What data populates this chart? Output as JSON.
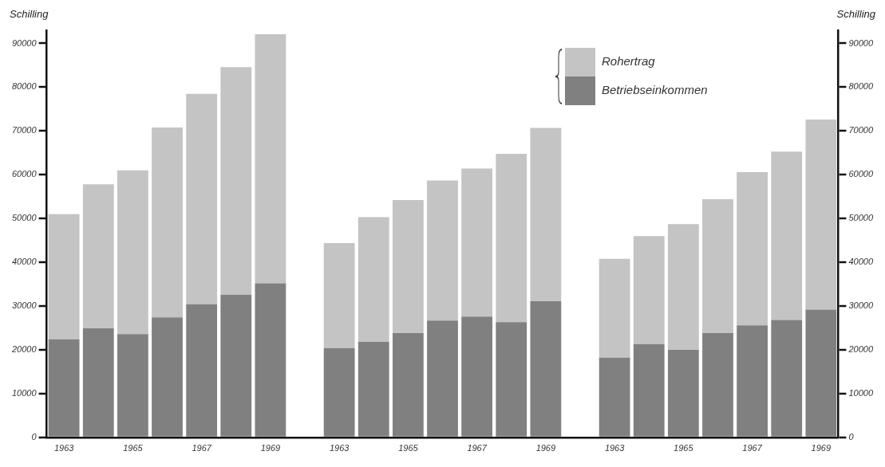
{
  "chart_data": {
    "type": "bar",
    "stacked": true,
    "ylabel": "Schilling",
    "y2label": "Schilling",
    "categories": [
      "1963",
      null,
      "1965",
      null,
      "1967",
      null,
      "1969",
      null,
      "1963",
      null,
      "1965",
      null,
      "1967",
      null,
      "1969",
      null,
      "1963",
      null,
      "1965",
      null,
      "1967",
      null,
      "1969"
    ],
    "series": [
      {
        "name": "Betriebseinkommen",
        "color": "#808080",
        "values": [
          22400,
          24900,
          23600,
          27400,
          30400,
          32600,
          35200,
          null,
          20400,
          21800,
          23800,
          26700,
          27600,
          26300,
          31100,
          null,
          18200,
          21300,
          20000,
          23800,
          25600,
          26800,
          29200
        ]
      },
      {
        "name": "Rohertrag",
        "color": "#c4c4c4",
        "values": [
          28600,
          32900,
          37400,
          43400,
          48100,
          52000,
          56900,
          null,
          24000,
          28500,
          30400,
          32000,
          33800,
          38500,
          39600,
          null,
          22600,
          24700,
          28700,
          30600,
          35000,
          38500,
          43400
        ]
      }
    ],
    "ylim": [
      0,
      93000
    ],
    "yticks": [
      0,
      10000,
      20000,
      30000,
      40000,
      50000,
      60000,
      70000,
      80000,
      90000
    ],
    "y2lim": [
      0,
      93000
    ],
    "y2ticks": [
      0,
      10000,
      20000,
      30000,
      40000,
      50000,
      60000,
      70000,
      80000,
      90000
    ],
    "grid": false,
    "legend": "top right"
  }
}
